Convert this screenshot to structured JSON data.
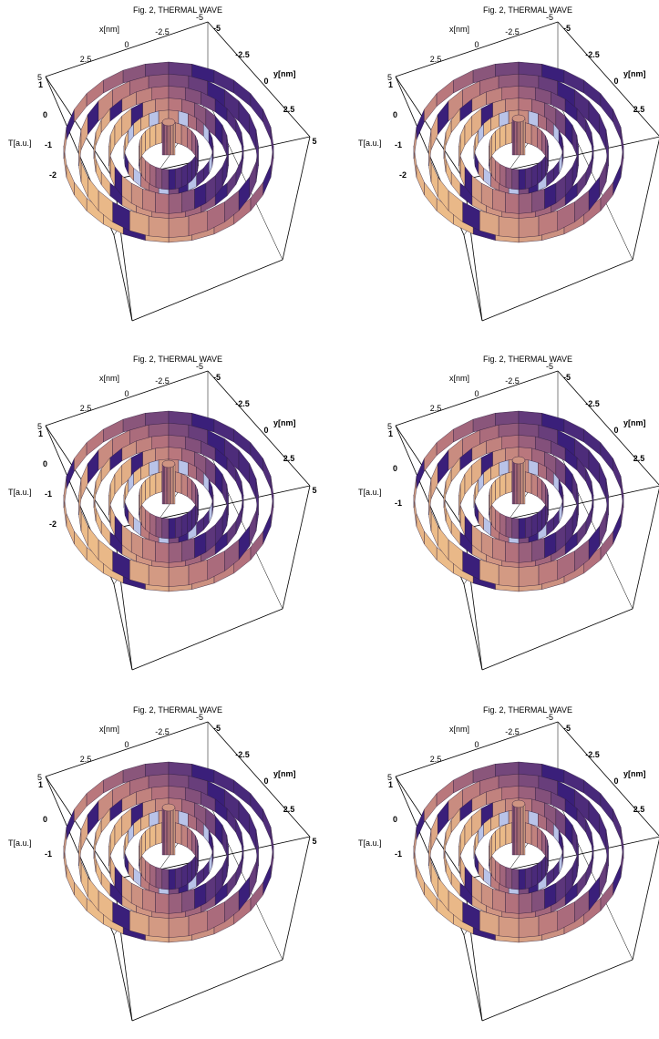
{
  "chart_data": [
    {
      "type": "surface3d",
      "title": "Fig. 2, THERMAL WAVE",
      "xlabel": "x[nm]",
      "ylabel": "y[nm]",
      "zlabel": "T[a.u.]",
      "x_ticks": [
        "2.5",
        "0",
        "-2.5",
        "-5"
      ],
      "y_ticks": [
        "-5",
        "-2.5",
        "0",
        "2.5",
        "5"
      ],
      "z_ticks": [
        "1",
        "0",
        "-1",
        "-2"
      ],
      "z_top_label": "5",
      "xlim": [
        -5,
        5
      ],
      "ylim": [
        -5,
        5
      ],
      "zlim": [
        -2.5,
        1.2
      ],
      "rings": 6
    },
    {
      "type": "surface3d",
      "title": "Fig. 2, THERMAL WAVE",
      "xlabel": "x[nm]",
      "ylabel": "y[nm]",
      "zlabel": "T[a.u.]",
      "x_ticks": [
        "2.5",
        "0",
        "-2.5",
        "-5"
      ],
      "y_ticks": [
        "-5",
        "-2.5",
        "0",
        "2.5",
        "5"
      ],
      "z_ticks": [
        "1",
        "0",
        "-1",
        "-2"
      ],
      "z_top_label": "5",
      "xlim": [
        -5,
        5
      ],
      "ylim": [
        -5,
        5
      ],
      "zlim": [
        -2.5,
        1.2
      ],
      "rings": 6
    },
    {
      "type": "surface3d",
      "title": "Fig. 2, THERMAL WAVE",
      "xlabel": "x[nm]",
      "ylabel": "y[nm]",
      "zlabel": "T[a.u.]",
      "x_ticks": [
        "2.5",
        "0",
        "-2.5",
        "-5"
      ],
      "y_ticks": [
        "-5",
        "-2.5",
        "0",
        "2.5",
        "5"
      ],
      "z_ticks": [
        "1",
        "0",
        "-1",
        "-2"
      ],
      "z_top_label": "5",
      "xlim": [
        -5,
        5
      ],
      "ylim": [
        -5,
        5
      ],
      "zlim": [
        -2.5,
        1.2
      ],
      "rings": 6
    },
    {
      "type": "surface3d",
      "title": "Fig. 2, THERMAL WAVE",
      "xlabel": "x[nm]",
      "ylabel": "y[nm]",
      "zlabel": "T[a.u.]",
      "x_ticks": [
        "2.5",
        "0",
        "-2.5",
        "-5"
      ],
      "y_ticks": [
        "-5",
        "-2.5",
        "0",
        "2.5",
        "5"
      ],
      "z_ticks": [
        "1",
        "0",
        "-1"
      ],
      "z_top_label": "5",
      "xlim": [
        -5,
        5
      ],
      "ylim": [
        -5,
        5
      ],
      "zlim": [
        -1.5,
        1.2
      ],
      "rings": 6
    },
    {
      "type": "surface3d",
      "title": "Fig. 2, THERMAL WAVE",
      "xlabel": "x[nm]",
      "ylabel": "y[nm]",
      "zlabel": "T[a.u.]",
      "x_ticks": [
        "2.5",
        "0",
        "-2.5",
        "-5"
      ],
      "y_ticks": [
        "-5",
        "-2.5",
        "0",
        "2.5",
        "5"
      ],
      "z_ticks": [
        "1",
        "0",
        "-1"
      ],
      "z_top_label": "5",
      "xlim": [
        -5,
        5
      ],
      "ylim": [
        -5,
        5
      ],
      "zlim": [
        -1.5,
        1.2
      ],
      "rings": 6
    },
    {
      "type": "surface3d",
      "title": "Fig. 2, THERMAL WAVE",
      "xlabel": "x[nm]",
      "ylabel": "y[nm]",
      "zlabel": "T[a.u.]",
      "x_ticks": [
        "2.5",
        "0",
        "-2.5",
        "-5"
      ],
      "y_ticks": [
        "-5",
        "-2.5",
        "0",
        "2.5",
        "5"
      ],
      "z_ticks": [
        "1",
        "0",
        "-1"
      ],
      "z_top_label": "5",
      "xlim": [
        -5,
        5
      ],
      "ylim": [
        -5,
        5
      ],
      "zlim": [
        -1.5,
        1.2
      ],
      "rings": 6
    }
  ],
  "colors": {
    "box": "#000000",
    "surface_light": "#f2c48a",
    "surface_mid": "#b7747c",
    "surface_dark": "#3a1f7a",
    "ring_highlight": "#b9c3e8"
  }
}
